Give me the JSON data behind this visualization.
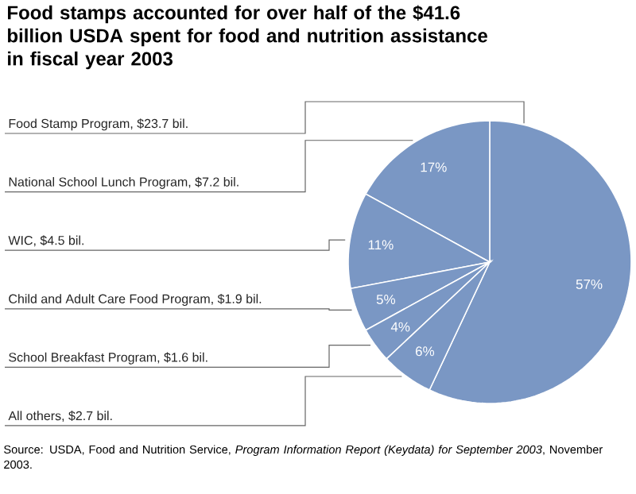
{
  "chart_data": {
    "type": "pie",
    "title": "Food stamps accounted for over half of the $41.6 billion USDA spent for food and nutrition assistance in fiscal year 2003",
    "categories": [
      "Food Stamp Program, $23.7 bil.",
      "National School Lunch Program, $7.2 bil.",
      "WIC, $4.5 bil.",
      "Child and Adult Care Food Program, $1.9 bil.",
      "School Breakfast Program, $1.6 bil.",
      "All others, $2.7 bil."
    ],
    "values": [
      57,
      17,
      11,
      5,
      4,
      6
    ],
    "colors": [
      "#7a97c4",
      "#7a97c4",
      "#7a97c4",
      "#7a97c4",
      "#7a97c4",
      "#7a97c4"
    ],
    "value_labels": [
      "57%",
      "17%",
      "11%",
      "5%",
      "4%",
      "6%"
    ],
    "annotations": [
      "Source: USDA, Food and Nutrition Service, *Program Information Report (Keydata) for September 2003*, November 2003."
    ]
  }
}
